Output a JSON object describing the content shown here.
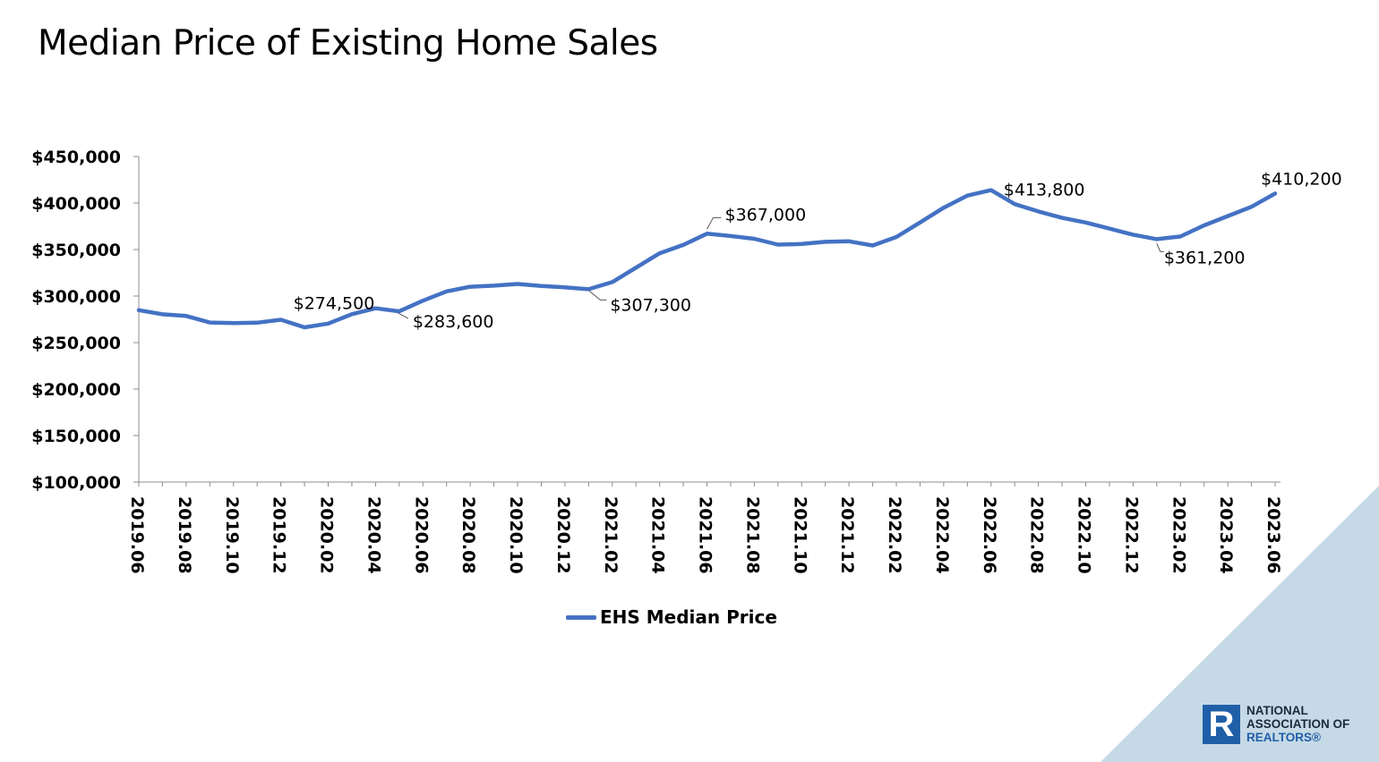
{
  "chart_data": {
    "type": "line",
    "title": "Median Price of Existing Home Sales",
    "xlabel": "",
    "ylabel": "",
    "ylim": [
      100000,
      450000
    ],
    "y_ticks": [
      "$100,000",
      "$150,000",
      "$200,000",
      "$250,000",
      "$300,000",
      "$350,000",
      "$400,000",
      "$450,000"
    ],
    "x_tick_labels": [
      "2019.06",
      "2019.08",
      "2019.10",
      "2019.12",
      "2020.02",
      "2020.04",
      "2020.06",
      "2020.08",
      "2020.10",
      "2020.12",
      "2021.02",
      "2021.04",
      "2021.06",
      "2021.08",
      "2021.10",
      "2021.12",
      "2022.02",
      "2022.04",
      "2022.06",
      "2022.08",
      "2022.10",
      "2022.12",
      "2023.02",
      "2023.04",
      "2023.06"
    ],
    "x": [
      "2019.06",
      "2019.07",
      "2019.08",
      "2019.09",
      "2019.10",
      "2019.11",
      "2019.12",
      "2020.01",
      "2020.02",
      "2020.03",
      "2020.04",
      "2020.05",
      "2020.06",
      "2020.07",
      "2020.08",
      "2020.09",
      "2020.10",
      "2020.11",
      "2020.12",
      "2021.01",
      "2021.02",
      "2021.03",
      "2021.04",
      "2021.05",
      "2021.06",
      "2021.07",
      "2021.08",
      "2021.09",
      "2021.10",
      "2021.11",
      "2021.12",
      "2022.01",
      "2022.02",
      "2022.03",
      "2022.04",
      "2022.05",
      "2022.06",
      "2022.07",
      "2022.08",
      "2022.09",
      "2022.10",
      "2022.11",
      "2022.12",
      "2023.01",
      "2023.02",
      "2023.03",
      "2023.04",
      "2023.05",
      "2023.06"
    ],
    "series": [
      {
        "name": "EHS Median Price",
        "color": "#4472c4",
        "values": [
          284800,
          280400,
          278600,
          271500,
          271000,
          271300,
          274500,
          266300,
          270400,
          280500,
          286800,
          283600,
          295000,
          305000,
          310000,
          311200,
          313000,
          310800,
          309300,
          307300,
          315000,
          330500,
          346000,
          355000,
          367000,
          364500,
          361500,
          355300,
          356000,
          358300,
          358800,
          354300,
          363500,
          379000,
          395000,
          408000,
          413800,
          398800,
          391000,
          384000,
          379000,
          372500,
          366000,
          361200,
          364000,
          376000,
          386000,
          396000,
          410200
        ]
      }
    ],
    "annotations": [
      {
        "label": "$274,500",
        "x": "2019.12"
      },
      {
        "label": "$283,600",
        "x": "2020.05"
      },
      {
        "label": "$307,300",
        "x": "2021.01"
      },
      {
        "label": "$367,000",
        "x": "2021.06"
      },
      {
        "label": "$413,800",
        "x": "2022.06"
      },
      {
        "label": "$361,200",
        "x": "2023.01"
      },
      {
        "label": "$410,200",
        "x": "2023.06"
      }
    ],
    "legend_position": "bottom",
    "grid": false
  },
  "logo": {
    "mark": "R",
    "line1": "NATIONAL",
    "line2": "ASSOCIATION OF",
    "line3": "REALTORS®"
  },
  "background_accent_color": "#c5d9e6"
}
